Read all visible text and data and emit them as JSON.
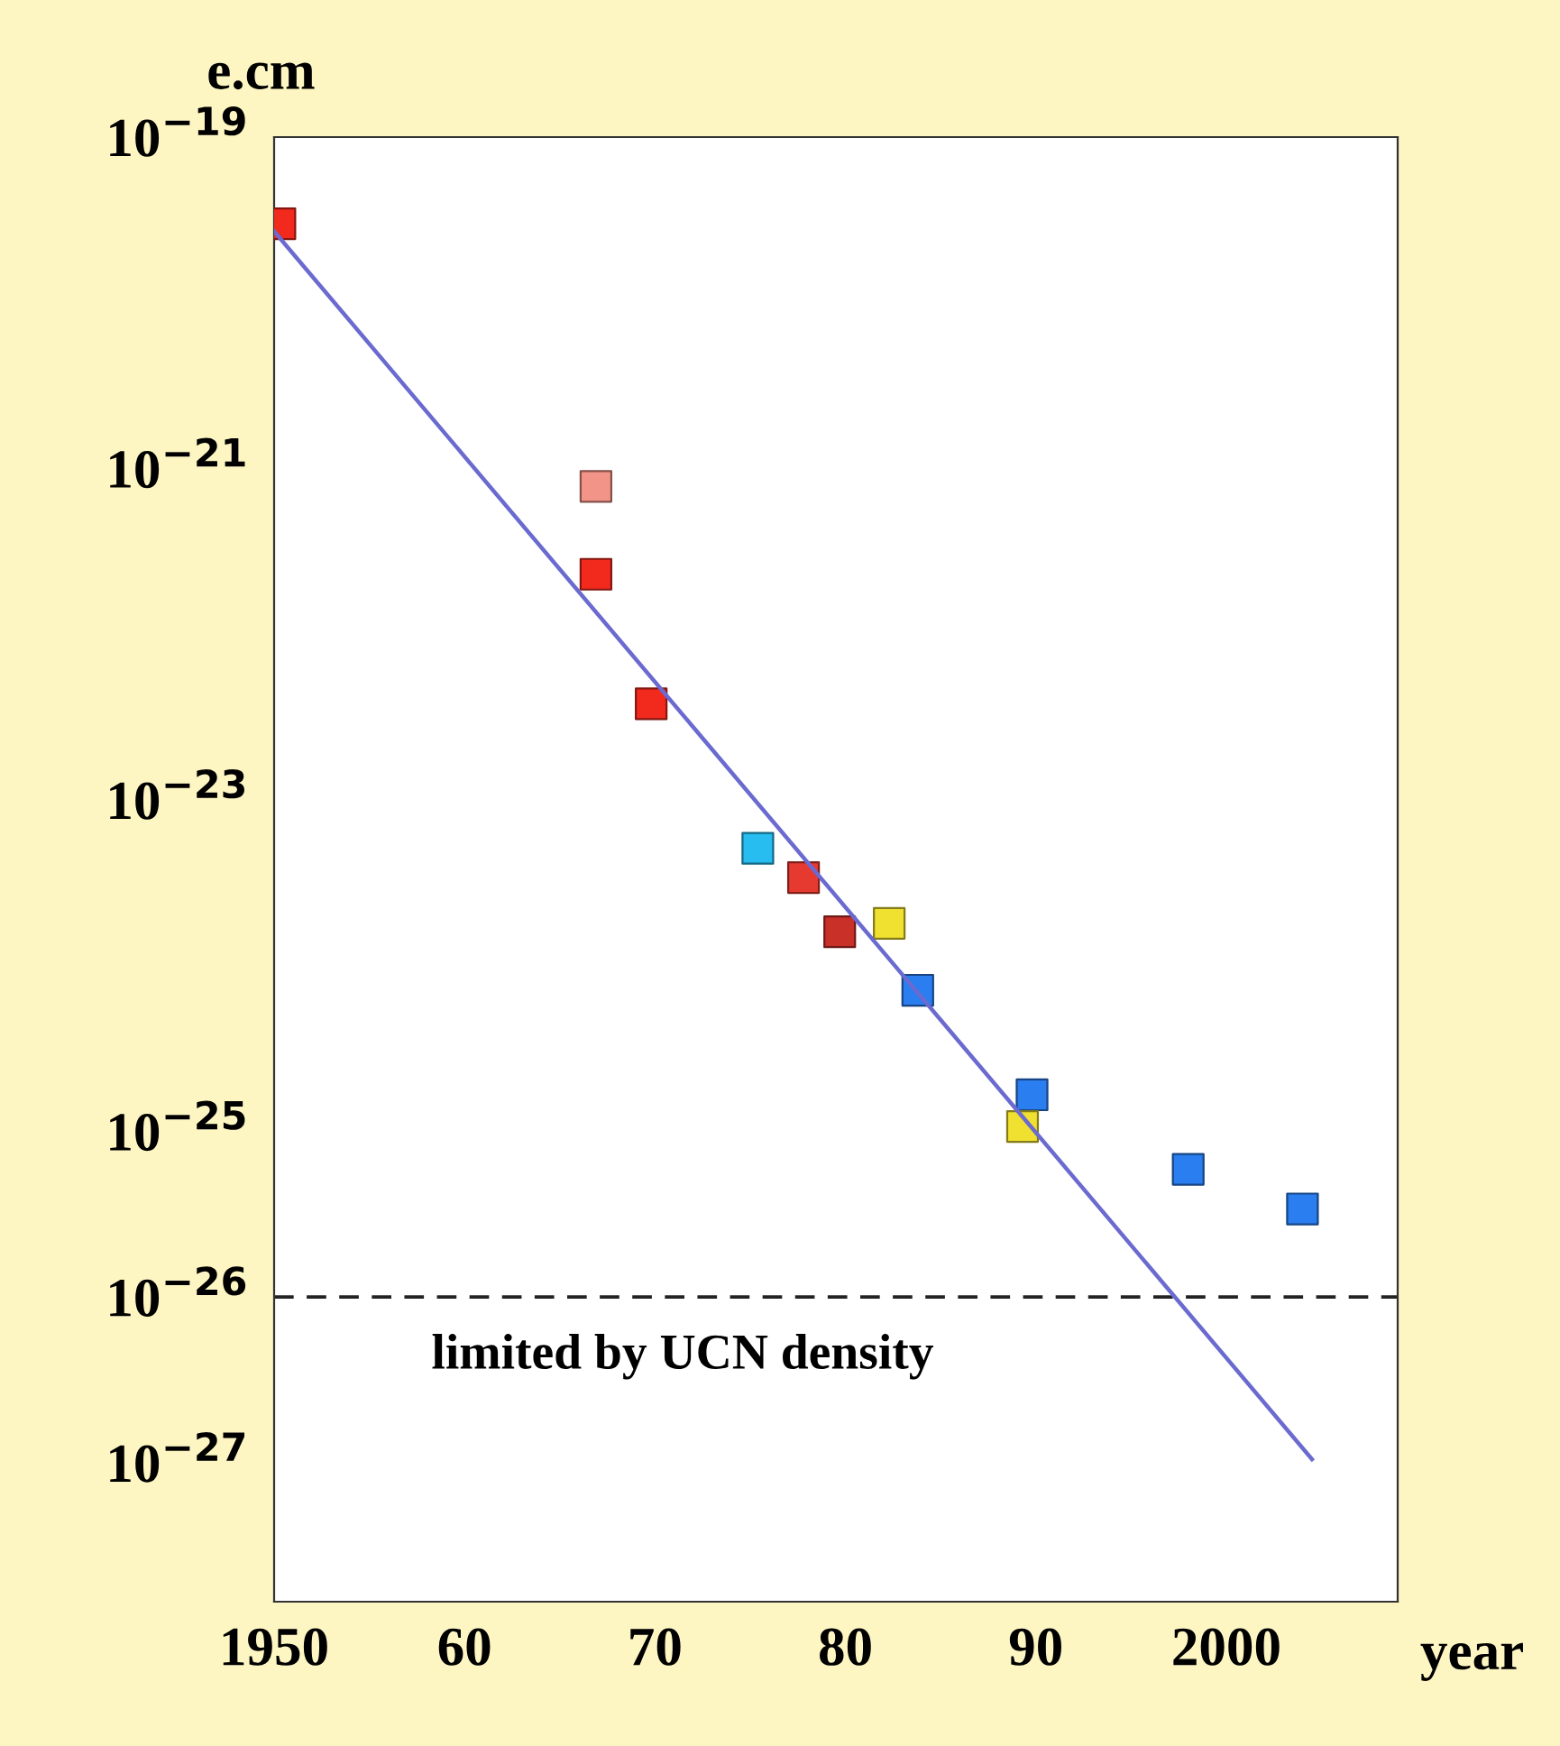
{
  "chart_data": {
    "type": "scatter",
    "xlabel": "year",
    "ylabel": "e.cm",
    "log": "y",
    "grid": false,
    "xlim": [
      1950,
      2009
    ],
    "xticks": [
      {
        "value": 1950,
        "label": "1950"
      },
      {
        "value": 1960,
        "label": "60"
      },
      {
        "value": 1970,
        "label": "70"
      },
      {
        "value": 1980,
        "label": "80"
      },
      {
        "value": 1990,
        "label": "90"
      },
      {
        "value": 2000,
        "label": "2000"
      }
    ],
    "ylim": [
      1.45e-28,
      1e-19
    ],
    "yticks": [
      {
        "value": 1e-19,
        "label": "10$^{−19}$"
      },
      {
        "value": 1e-21,
        "label": "10$^{−21}$"
      },
      {
        "value": 1e-23,
        "label": "10$^{−23}$"
      },
      {
        "value": 1e-25,
        "label": "10$^{−25}$"
      },
      {
        "value": 1e-26,
        "label": "10$^{−26}$"
      },
      {
        "value": 1e-27,
        "label": "10$^{−27}$"
      }
    ],
    "series": [
      {
        "marker": "square",
        "x": [
          1950.3,
          1966.9,
          1966.9,
          1969.8,
          1975.4,
          1977.8,
          1979.7,
          1982.3,
          1983.8,
          1989.8,
          1989.3,
          1998.0,
          2004.0
        ],
        "values": [
          3e-20,
          7.8e-22,
          2.3e-22,
          3.8e-23,
          5.1e-24,
          3.4e-24,
          1.6e-24,
          1.8e-24,
          7.1e-25,
          1.66e-25,
          1.07e-25,
          5.9e-26,
          3.4e-26
        ],
        "colors": [
          "#f22a1e",
          "#f39488",
          "#f22a1e",
          "#f22a1e",
          "#27bdf0",
          "#e63a30",
          "#c83028",
          "#f0e030",
          "#2a7ef0",
          "#2a7ef0",
          "#f0e030",
          "#2a7ef0",
          "#2a7ef0"
        ]
      },
      {
        "type": "line",
        "color": "#6a6ad0",
        "x": [
          1950,
          2004.5
        ],
        "values": [
          2.7e-20,
          1.05e-27
        ]
      }
    ],
    "ref_lines": [
      {
        "axis": "y",
        "value": 1e-26,
        "label": "limited by UCN density",
        "color": "#222222",
        "line_style": "dashed"
      }
    ]
  }
}
